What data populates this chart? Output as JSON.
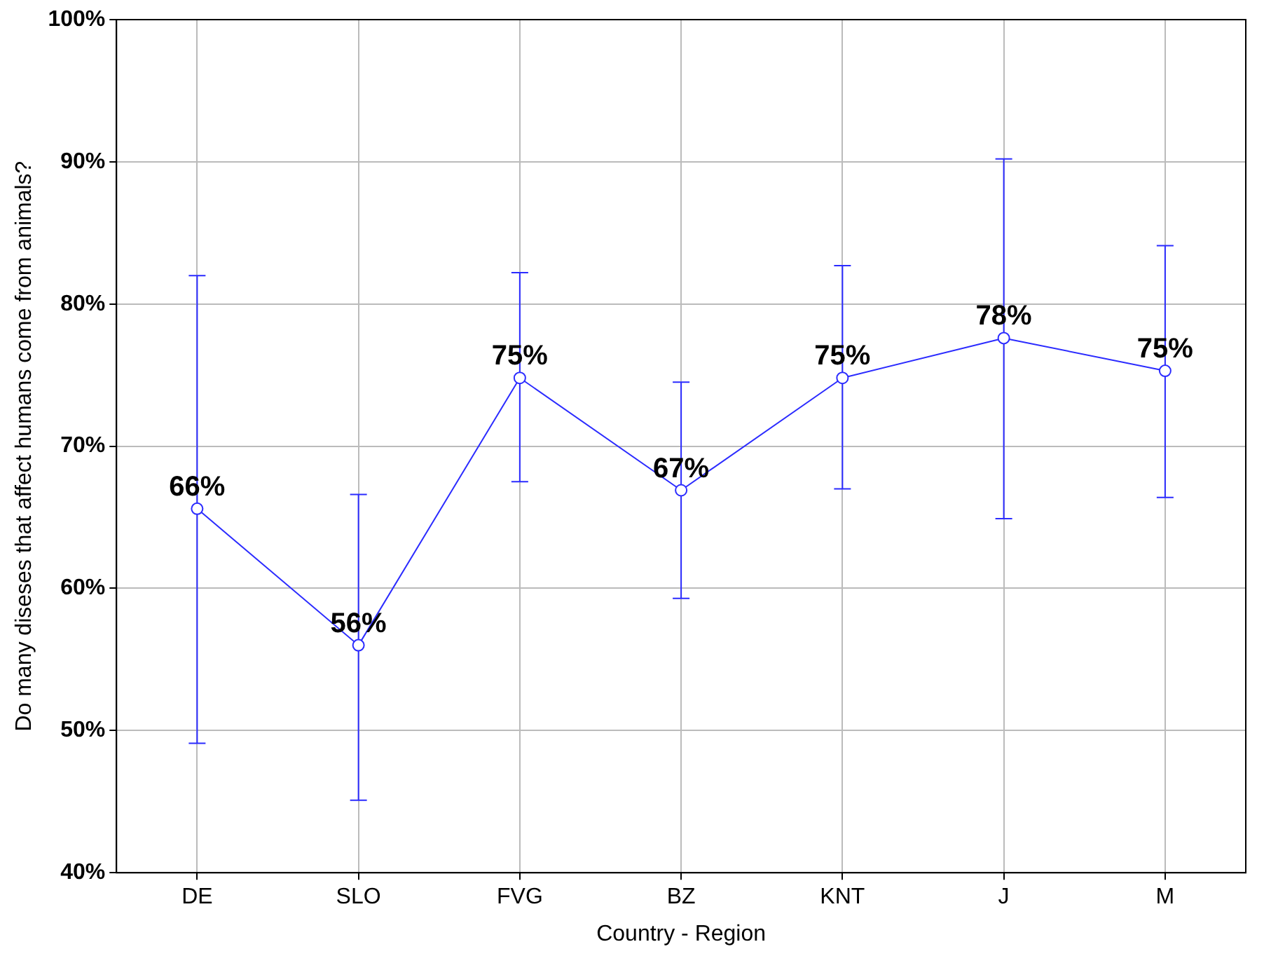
{
  "chart_data": {
    "type": "line",
    "xlabel": "Country - Region",
    "ylabel": "Do many diseses that affect humans come from animals?",
    "categories": [
      "DE",
      "SLO",
      "FVG",
      "BZ",
      "KNT",
      "J",
      "M"
    ],
    "series": [
      {
        "color": "#2b2bff",
        "values": [
          65.6,
          56.0,
          74.8,
          66.9,
          74.8,
          77.6,
          75.3
        ],
        "errors": [
          [
            49.1,
            82.0
          ],
          [
            45.1,
            66.6
          ],
          [
            67.5,
            82.2
          ],
          [
            59.3,
            74.5
          ],
          [
            67.0,
            82.7
          ],
          [
            64.9,
            90.2
          ],
          [
            66.4,
            84.1
          ]
        ],
        "value_labels": [
          "66%",
          "56%",
          "75%",
          "67%",
          "75%",
          "78%",
          "75%"
        ]
      }
    ],
    "ylim": [
      40,
      100
    ],
    "yticks": [
      {
        "value": 40,
        "label": "40%"
      },
      {
        "value": 50,
        "label": "50%"
      },
      {
        "value": 60,
        "label": "60%"
      },
      {
        "value": 70,
        "label": "70%"
      },
      {
        "value": 80,
        "label": "80%"
      },
      {
        "value": 90,
        "label": "90%"
      },
      {
        "value": 100,
        "label": "100%"
      }
    ],
    "grid": true,
    "legend": false,
    "marker": "circle",
    "line_style": "solid"
  }
}
